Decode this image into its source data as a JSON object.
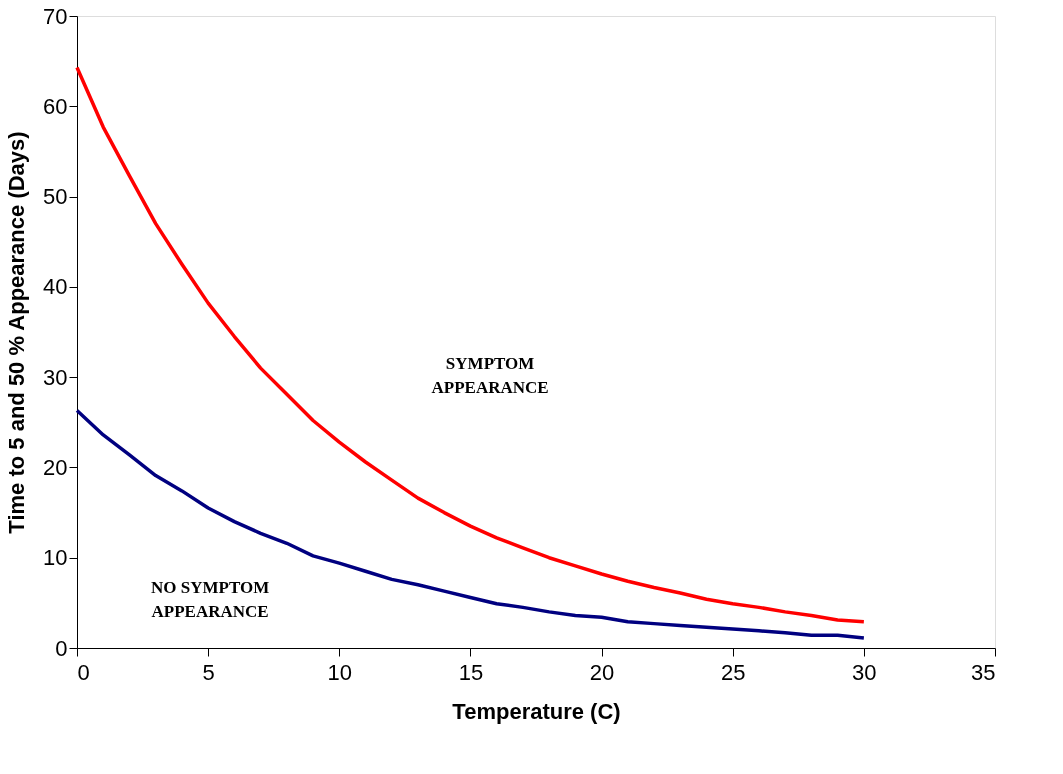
{
  "chart_data": {
    "type": "line",
    "xlabel": "Temperature (C)",
    "ylabel": "Time to 5 and 50 % Appearance (Days)",
    "x": [
      0,
      1,
      2,
      3,
      4,
      5,
      6,
      7,
      8,
      9,
      10,
      11,
      12,
      13,
      14,
      15,
      16,
      17,
      18,
      19,
      20,
      21,
      22,
      23,
      24,
      25,
      26,
      27,
      28,
      29,
      30
    ],
    "series": [
      {
        "color": "#ff0000",
        "values": [
          64.3,
          57.7,
          52.3,
          47,
          42.5,
          38.2,
          34.5,
          31,
          28.1,
          25.2,
          22.8,
          20.6,
          18.6,
          16.6,
          15,
          13.5,
          12.2,
          11.1,
          10,
          9.1,
          8.2,
          7.4,
          6.7,
          6.1,
          5.4,
          4.9,
          4.5,
          4,
          3.6,
          3.1,
          2.9
        ]
      },
      {
        "color": "#000080",
        "values": [
          26.3,
          23.6,
          21.4,
          19.1,
          17.4,
          15.5,
          14,
          12.7,
          11.6,
          10.2,
          9.4,
          8.5,
          7.6,
          7,
          6.3,
          5.6,
          4.9,
          4.5,
          4,
          3.6,
          3.4,
          2.9,
          2.7,
          2.5,
          2.3,
          2.1,
          1.9,
          1.7,
          1.4,
          1.4,
          1.1
        ]
      }
    ],
    "xlim": [
      0,
      35
    ],
    "xticks": [
      0,
      5,
      10,
      15,
      20,
      25,
      30,
      35
    ],
    "ylim": [
      0,
      70
    ],
    "yticks": [
      0,
      10,
      20,
      30,
      40,
      50,
      60,
      70
    ],
    "annotations": [
      "SYMPTOM\nAPPEARANCE",
      "NO SYMPTOM\nAPPEARANCE"
    ],
    "grid": false,
    "legend": false,
    "marker": "none",
    "line_style": "solid"
  }
}
